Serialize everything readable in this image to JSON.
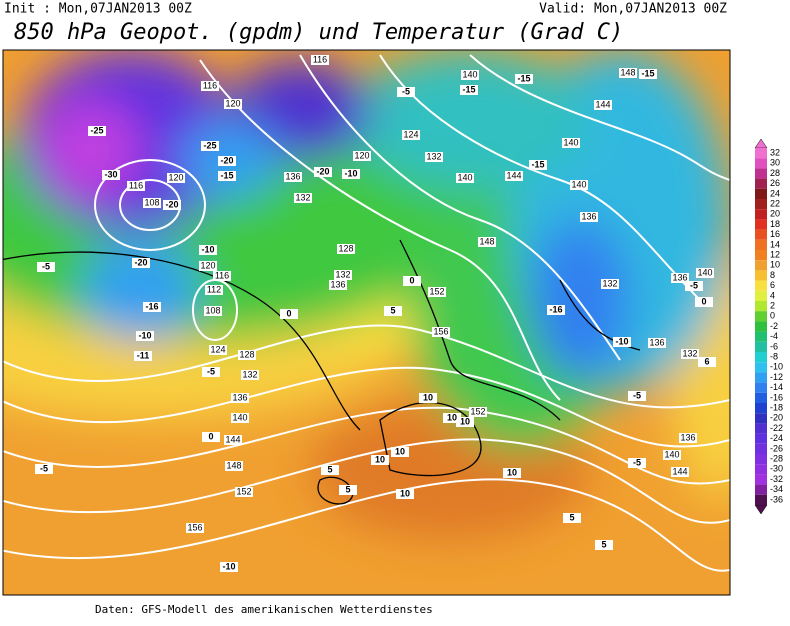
{
  "header": {
    "init": "Init : Mon,07JAN2013 00Z",
    "valid": "Valid: Mon,07JAN2013 00Z",
    "title": "850 hPa Geopot. (gpdm) und Temperatur (Grad C)"
  },
  "map": {
    "geopotential_labels": [
      116,
      140,
      148,
      116,
      120,
      144,
      124,
      132,
      140,
      120,
      136,
      140,
      144,
      140,
      120,
      116,
      108,
      132,
      136,
      128,
      148,
      120,
      116,
      132,
      136,
      132,
      136,
      140,
      112,
      152,
      108,
      156,
      124,
      128,
      136,
      132,
      132,
      136,
      140,
      152,
      144,
      136,
      140,
      144,
      148,
      152,
      156
    ],
    "temperature_labels": [
      -25,
      -25,
      -20,
      -15,
      -30,
      -20,
      -10,
      -5,
      -20,
      -16,
      -10,
      -11,
      -15,
      -15,
      -15,
      -15,
      -5,
      -10,
      -20,
      0,
      5,
      0,
      -5,
      0,
      -16,
      -10,
      -5,
      -5,
      6,
      10,
      10,
      10,
      10,
      10,
      5,
      -5,
      5,
      10,
      5,
      5,
      -10,
      0,
      -5,
      10
    ]
  },
  "colorbar": {
    "labels": [
      32,
      30,
      28,
      26,
      24,
      22,
      20,
      18,
      16,
      14,
      12,
      10,
      8,
      6,
      4,
      2,
      0,
      -2,
      -4,
      -6,
      -8,
      -10,
      -12,
      -14,
      -16,
      -18,
      -20,
      -22,
      -24,
      -26,
      -28,
      -30,
      -32,
      -34,
      -36
    ],
    "colors": [
      "#f070d0",
      "#e050c0",
      "#c03090",
      "#a02050",
      "#801818",
      "#a02020",
      "#c02020",
      "#e03020",
      "#e85020",
      "#ee7020",
      "#f08020",
      "#f0a030",
      "#f8c030",
      "#f8e040",
      "#e0f040",
      "#b0e830",
      "#60d030",
      "#30c040",
      "#20c070",
      "#20c0a0",
      "#20d0d0",
      "#30c0f0",
      "#30a0f0",
      "#3080f0",
      "#2060e0",
      "#2040d0",
      "#3030c0",
      "#5030d0",
      "#6030e0",
      "#7030e0",
      "#8030e0",
      "#9030e0",
      "#a030e0",
      "#8020a0",
      "#501050"
    ]
  },
  "footer": "Daten: GFS-Modell des amerikanischen Wetterdienstes"
}
